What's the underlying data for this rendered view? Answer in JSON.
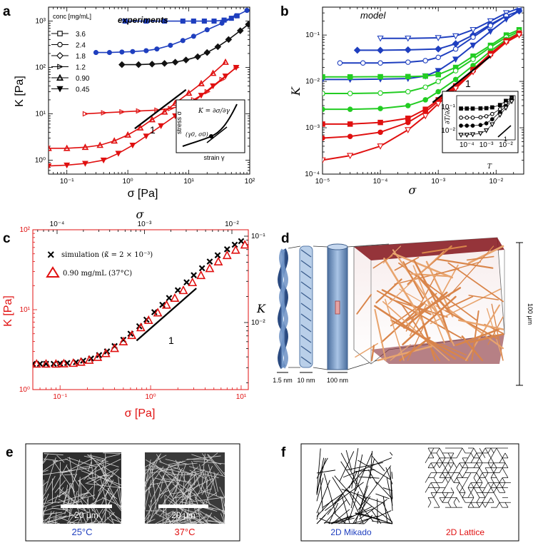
{
  "panels": {
    "a": {
      "label": "a",
      "title": "experiments",
      "xlabel": "σ [Pa]",
      "ylabel": "K [Pa]",
      "legend_title": "conc [mg/mL]",
      "legend": [
        "3.6",
        "2.4",
        "1.8",
        "1.2",
        "0.90",
        "0.45"
      ],
      "slope_label": "1",
      "inset": {
        "formula": "K = ∂σ/∂γ",
        "point": "(γ0, σ0)",
        "ylabel": "stress σ",
        "xlabel": "strain γ"
      }
    },
    "b": {
      "label": "b",
      "title": "model",
      "xlabel": "σ",
      "ylabel": "K",
      "slope_label": "1",
      "inset": {
        "ylabel": "∂T/∂λ",
        "xlabel": "T",
        "slope_label": "1"
      }
    },
    "c": {
      "label": "c",
      "top_label": "σ",
      "right_label": "K",
      "xlabel": "σ [Pa]",
      "ylabel": "K [Pa]",
      "legend": [
        "simulation (κ̃ = 2 × 10⁻³)",
        "0.90 mg/mL (37°C)"
      ],
      "slope_label": "1"
    },
    "d": {
      "label": "d",
      "scales": [
        "1.5 nm",
        "10 nm",
        "100 nm"
      ],
      "scale_bar": "100 μm"
    },
    "e": {
      "label": "e",
      "images": [
        {
          "scale": "20 μm",
          "caption": "25°C",
          "color": "#1f3fbf"
        },
        {
          "scale": "20 μm",
          "caption": "37°C",
          "color": "#e01010"
        }
      ]
    },
    "f": {
      "label": "f",
      "captions": [
        {
          "text": "2D Mikado",
          "color": "#1f3fbf"
        },
        {
          "text": "2D Lattice",
          "color": "#e01010"
        }
      ]
    }
  },
  "chart_data": [
    {
      "panel": "a",
      "type": "scatter",
      "title": "experiments",
      "xlabel": "σ [Pa]",
      "ylabel": "K [Pa]",
      "xscale": "log",
      "yscale": "log",
      "xlim": [
        0.05,
        100
      ],
      "ylim": [
        0.5,
        2000
      ],
      "x_ticks": [
        "10⁻¹",
        "10⁰",
        "10¹",
        "10²"
      ],
      "y_ticks": [
        "10⁰",
        "10¹",
        "10²",
        "10³"
      ],
      "series": [
        {
          "name": "3.6",
          "color": "#1f3fbf",
          "marker": "square",
          "x": [
            0.9,
            2,
            4,
            8,
            12,
            18,
            26,
            38,
            50,
            62
          ],
          "y": [
            1000,
            1000,
            1000,
            1000,
            1000,
            1000,
            1000,
            1050,
            1150,
            1300
          ]
        },
        {
          "name": "2.4",
          "color": "#1f3fbf",
          "marker": "circle",
          "x": [
            0.3,
            0.5,
            0.8,
            1.2,
            2,
            3,
            5,
            8,
            12,
            20,
            35,
            60,
            90
          ],
          "y": [
            210,
            210,
            215,
            220,
            230,
            250,
            300,
            380,
            470,
            650,
            900,
            1300,
            1700
          ]
        },
        {
          "name": "1.8",
          "color": "#111111",
          "marker": "diamond",
          "x": [
            0.8,
            1.5,
            2.5,
            4,
            6,
            9,
            14,
            20,
            30,
            45,
            70,
            95
          ],
          "y": [
            115,
            115,
            118,
            122,
            130,
            145,
            170,
            210,
            280,
            400,
            620,
            850
          ]
        },
        {
          "name": "1.2",
          "color": "#e01010",
          "marker": "triangle-right",
          "x": [
            0.2,
            0.4,
            0.8,
            1.5,
            3,
            5,
            8,
            12,
            20,
            35,
            60
          ],
          "y": [
            10,
            10.5,
            11,
            11.5,
            12,
            13,
            15,
            20,
            30,
            55,
            100
          ]
        },
        {
          "name": "0.90",
          "color": "#e01010",
          "marker": "triangle-up",
          "x": [
            0.05,
            0.1,
            0.2,
            0.35,
            0.6,
            1,
            1.6,
            2.5,
            4,
            6,
            10,
            16,
            25,
            40
          ],
          "y": [
            1.8,
            1.8,
            1.9,
            2.1,
            2.6,
            3.5,
            5,
            7.5,
            11,
            17,
            28,
            45,
            75,
            130
          ]
        },
        {
          "name": "0.45",
          "color": "#e01010",
          "marker": "triangle-down",
          "x": [
            0.05,
            0.1,
            0.2,
            0.4,
            0.7,
            1.2,
            2,
            3.5,
            6,
            10,
            16,
            25,
            40,
            60
          ],
          "y": [
            0.75,
            0.78,
            0.85,
            1.0,
            1.4,
            2.1,
            3.3,
            5.5,
            9,
            15,
            25,
            40,
            65,
            100
          ]
        }
      ],
      "slope_line": {
        "x": [
          1.3,
          9
        ],
        "y": [
          4.8,
          33
        ],
        "label": "1"
      }
    },
    {
      "panel": "b",
      "type": "line",
      "title": "model",
      "xlabel": "σ",
      "ylabel": "K",
      "xscale": "log",
      "yscale": "log",
      "xlim": [
        1e-05,
        0.03
      ],
      "ylim": [
        0.0001,
        0.4
      ],
      "x_ticks": [
        "10⁻⁵",
        "10⁻⁴",
        "10⁻³",
        "10⁻²"
      ],
      "y_ticks": [
        "10⁻⁴",
        "10⁻³",
        "10⁻²",
        "10⁻¹"
      ],
      "series": [
        {
          "name": "blue open triangles",
          "color": "#1f3fbf",
          "marker": "triangle-down-open",
          "x": [
            0.0001,
            0.0003,
            0.001,
            0.002,
            0.004,
            0.008,
            0.015,
            0.025
          ],
          "y": [
            0.085,
            0.085,
            0.087,
            0.095,
            0.13,
            0.2,
            0.3,
            0.38
          ]
        },
        {
          "name": "blue diamonds",
          "color": "#1f3fbf",
          "marker": "diamond",
          "x": [
            4e-05,
            0.0001,
            0.0003,
            0.001,
            0.002,
            0.004,
            0.008,
            0.015,
            0.025
          ],
          "y": [
            0.047,
            0.047,
            0.048,
            0.05,
            0.065,
            0.1,
            0.17,
            0.26,
            0.33
          ]
        },
        {
          "name": "blue circles",
          "color": "#1f3fbf",
          "marker": "circle-open",
          "x": [
            2e-05,
            5e-05,
            0.0001,
            0.0003,
            0.0006,
            0.001,
            0.002,
            0.004,
            0.008,
            0.015
          ],
          "y": [
            0.025,
            0.025,
            0.025,
            0.026,
            0.028,
            0.033,
            0.05,
            0.09,
            0.16,
            0.26
          ]
        },
        {
          "name": "blue triangles",
          "color": "#1f3fbf",
          "marker": "triangle-down",
          "x": [
            1e-05,
            3e-05,
            0.0001,
            0.0003,
            0.0006,
            0.001,
            0.002,
            0.004,
            0.008,
            0.015,
            0.025
          ],
          "y": [
            0.011,
            0.011,
            0.0112,
            0.0115,
            0.013,
            0.017,
            0.03,
            0.06,
            0.12,
            0.22,
            0.33
          ]
        },
        {
          "name": "green squares",
          "color": "#22cc22",
          "marker": "square",
          "x": [
            1e-05,
            3e-05,
            0.0001,
            0.0003,
            0.0006,
            0.001,
            0.002,
            0.004,
            0.008,
            0.015,
            0.025
          ],
          "y": [
            0.0125,
            0.0125,
            0.0126,
            0.0127,
            0.013,
            0.014,
            0.02,
            0.035,
            0.06,
            0.1,
            0.13
          ]
        },
        {
          "name": "green circles",
          "color": "#22cc22",
          "marker": "circle-open",
          "x": [
            1e-05,
            3e-05,
            0.0001,
            0.0003,
            0.0006,
            0.001,
            0.002,
            0.004,
            0.008,
            0.015,
            0.025
          ],
          "y": [
            0.0055,
            0.0055,
            0.0056,
            0.006,
            0.0075,
            0.01,
            0.017,
            0.03,
            0.055,
            0.09,
            0.12
          ]
        },
        {
          "name": "green dots",
          "color": "#22cc22",
          "marker": "circle",
          "x": [
            1e-05,
            3e-05,
            0.0001,
            0.0003,
            0.0006,
            0.001,
            0.002,
            0.004,
            0.008,
            0.015,
            0.025
          ],
          "y": [
            0.0025,
            0.0025,
            0.0026,
            0.003,
            0.004,
            0.006,
            0.011,
            0.022,
            0.045,
            0.08,
            0.11
          ]
        },
        {
          "name": "red squares",
          "color": "#e01010",
          "marker": "square",
          "x": [
            1e-05,
            3e-05,
            0.0001,
            0.0003,
            0.0006,
            0.001,
            0.002,
            0.004,
            0.008,
            0.015,
            0.025
          ],
          "y": [
            0.0012,
            0.0012,
            0.0013,
            0.0016,
            0.0025,
            0.004,
            0.008,
            0.018,
            0.04,
            0.075,
            0.11
          ]
        },
        {
          "name": "red circles",
          "color": "#e01010",
          "marker": "circle",
          "x": [
            1e-05,
            3e-05,
            0.0001,
            0.0003,
            0.0006,
            0.001,
            0.002,
            0.004,
            0.008,
            0.015,
            0.025
          ],
          "y": [
            0.0006,
            0.00065,
            0.0008,
            0.0013,
            0.0022,
            0.0037,
            0.0075,
            0.017,
            0.038,
            0.072,
            0.105
          ]
        },
        {
          "name": "red triangles",
          "color": "#e01010",
          "marker": "triangle-down-open",
          "x": [
            1e-05,
            3e-05,
            0.0001,
            0.0003,
            0.0006,
            0.001,
            0.002,
            0.004,
            0.008,
            0.015,
            0.025
          ],
          "y": [
            0.0002,
            0.00025,
            0.0004,
            0.0009,
            0.0018,
            0.0033,
            0.007,
            0.016,
            0.036,
            0.07,
            0.1
          ]
        }
      ],
      "slope_line": {
        "x": [
          0.0008,
          0.008
        ],
        "y": [
          0.0035,
          0.035
        ],
        "label": "1"
      },
      "inset": {
        "xscale": "log",
        "yscale": "log",
        "xlim": [
          3e-05,
          0.03
        ],
        "ylim": [
          0.004,
          0.3
        ],
        "x_ticks": [
          "10⁻⁴",
          "10⁻³",
          "10⁻²"
        ],
        "y_ticks": [
          "10⁻²",
          "10⁻¹"
        ],
        "series": [
          {
            "name": "squares",
            "marker": "square",
            "x": [
              5e-05,
              0.0001,
              0.0002,
              0.0005,
              0.001,
              0.002,
              0.005,
              0.01,
              0.02
            ],
            "y": [
              0.085,
              0.085,
              0.085,
              0.086,
              0.088,
              0.095,
              0.12,
              0.18,
              0.25
            ]
          },
          {
            "name": "open circles",
            "marker": "circle-open",
            "x": [
              5e-05,
              0.0001,
              0.0002,
              0.0005,
              0.001,
              0.002,
              0.005,
              0.01,
              0.02
            ],
            "y": [
              0.035,
              0.035,
              0.035,
              0.036,
              0.04,
              0.05,
              0.08,
              0.14,
              0.22
            ]
          },
          {
            "name": "dots",
            "marker": "circle",
            "x": [
              5e-05,
              0.0001,
              0.0002,
              0.0005,
              0.001,
              0.002,
              0.005,
              0.01,
              0.02
            ],
            "y": [
              0.016,
              0.016,
              0.016,
              0.017,
              0.02,
              0.03,
              0.06,
              0.11,
              0.2
            ]
          },
          {
            "name": "triangles",
            "marker": "triangle-down-open",
            "x": [
              5e-05,
              0.0001,
              0.0002,
              0.0005,
              0.001,
              0.002,
              0.005,
              0.01,
              0.02
            ],
            "y": [
              0.0065,
              0.0065,
              0.0068,
              0.0075,
              0.01,
              0.018,
              0.045,
              0.09,
              0.17
            ]
          }
        ]
      }
    },
    {
      "panel": "c",
      "type": "scatter",
      "xlabel": "σ [Pa]",
      "ylabel": "K [Pa]",
      "top_axis_label": "σ",
      "right_axis_label": "K",
      "xscale": "log",
      "yscale": "log",
      "xlim": [
        0.05,
        12
      ],
      "ylim": [
        1,
        100
      ],
      "x_ticks": [
        "10⁻¹",
        "10⁰",
        "10¹"
      ],
      "y_ticks": [
        "10⁰",
        "10¹",
        "10²"
      ],
      "top_ticks": [
        "10⁻⁴",
        "10⁻³",
        "10⁻²"
      ],
      "right_ticks": [
        "10⁻²",
        "10⁻¹"
      ],
      "series": [
        {
          "name": "simulation (κ̃ = 2 × 10⁻³)",
          "color": "#000000",
          "marker": "x",
          "x": [
            0.05,
            0.06,
            0.07,
            0.085,
            0.1,
            0.12,
            0.15,
            0.18,
            0.22,
            0.27,
            0.33,
            0.4,
            0.5,
            0.6,
            0.75,
            0.9,
            1.1,
            1.35,
            1.6,
            2,
            2.5,
            3,
            3.7,
            4.5,
            5.5,
            7,
            8.5,
            10
          ],
          "y": [
            2.1,
            2.1,
            2.1,
            2.1,
            2.12,
            2.15,
            2.2,
            2.3,
            2.45,
            2.7,
            3.0,
            3.5,
            4.2,
            5,
            6.2,
            7.5,
            9.3,
            11.5,
            14,
            17.5,
            22,
            27,
            33,
            40,
            48,
            57,
            65,
            72
          ]
        },
        {
          "name": "0.90 mg/mL (37°C)",
          "color": "#e01010",
          "marker": "triangle-up",
          "x": [
            0.055,
            0.07,
            0.09,
            0.11,
            0.14,
            0.17,
            0.21,
            0.26,
            0.32,
            0.4,
            0.5,
            0.62,
            0.78,
            0.95,
            1.2,
            1.5,
            1.85,
            2.3,
            2.9,
            3.6,
            4.5,
            5.6,
            7,
            8.7,
            11
          ],
          "y": [
            2.1,
            2.1,
            2.1,
            2.12,
            2.15,
            2.22,
            2.35,
            2.55,
            2.85,
            3.3,
            4,
            4.8,
            6,
            7.4,
            9.2,
            11.5,
            14,
            17.5,
            22,
            27,
            33,
            40,
            48,
            56,
            65
          ]
        }
      ],
      "slope_line": {
        "x": [
          0.7,
          3.2
        ],
        "y": [
          4.1,
          18.5
        ],
        "label": "1"
      }
    }
  ]
}
